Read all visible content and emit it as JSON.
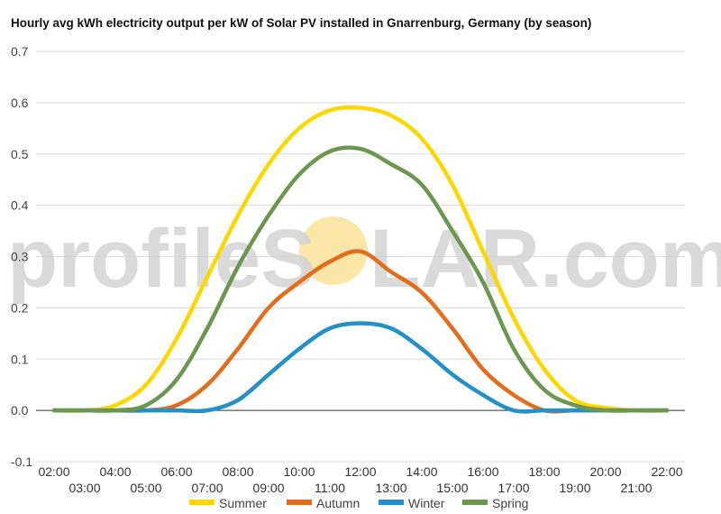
{
  "chart_data": {
    "type": "line",
    "title": "Hourly avg kWh electricity output per kW of Solar PV installed in Gnarrenburg, Germany (by season)",
    "xlabel": "",
    "ylabel": "",
    "ylim": [
      -0.1,
      0.7
    ],
    "yticks": [
      "-0.1",
      "0.0",
      "0.1",
      "0.2",
      "0.3",
      "0.4",
      "0.5",
      "0.6",
      "0.7"
    ],
    "x": [
      "02:00",
      "03:00",
      "04:00",
      "05:00",
      "06:00",
      "07:00",
      "08:00",
      "09:00",
      "10:00",
      "11:00",
      "12:00",
      "13:00",
      "14:00",
      "15:00",
      "16:00",
      "17:00",
      "18:00",
      "19:00",
      "20:00",
      "21:00",
      "22:00"
    ],
    "grid": true,
    "legend": "bottom",
    "series": [
      {
        "name": "Summer",
        "color": "#FFD700",
        "values": [
          0.0,
          0.0,
          0.01,
          0.05,
          0.14,
          0.26,
          0.38,
          0.48,
          0.55,
          0.585,
          0.59,
          0.575,
          0.53,
          0.44,
          0.31,
          0.18,
          0.08,
          0.02,
          0.005,
          0.0,
          0.0
        ]
      },
      {
        "name": "Autumn",
        "color": "#E46C1C",
        "values": [
          0.0,
          0.0,
          0.0,
          0.0,
          0.01,
          0.05,
          0.12,
          0.2,
          0.25,
          0.29,
          0.31,
          0.27,
          0.23,
          0.16,
          0.08,
          0.03,
          0.0,
          0.0,
          0.0,
          0.0,
          0.0
        ]
      },
      {
        "name": "Winter",
        "color": "#2390C6",
        "values": [
          0.0,
          0.0,
          0.0,
          0.0,
          0.0,
          0.0,
          0.02,
          0.07,
          0.12,
          0.16,
          0.17,
          0.16,
          0.12,
          0.07,
          0.03,
          0.0,
          0.0,
          0.0,
          0.0,
          0.0,
          0.0
        ]
      },
      {
        "name": "Spring",
        "color": "#6D9650",
        "values": [
          0.0,
          0.0,
          0.0,
          0.01,
          0.06,
          0.16,
          0.28,
          0.38,
          0.46,
          0.505,
          0.51,
          0.48,
          0.44,
          0.35,
          0.25,
          0.12,
          0.04,
          0.01,
          0.0,
          0.0,
          0.0
        ]
      }
    ]
  },
  "watermark": {
    "text_left": "profileS",
    "text_right": "LAR.com",
    "sun_color": "#FBE7A8"
  }
}
